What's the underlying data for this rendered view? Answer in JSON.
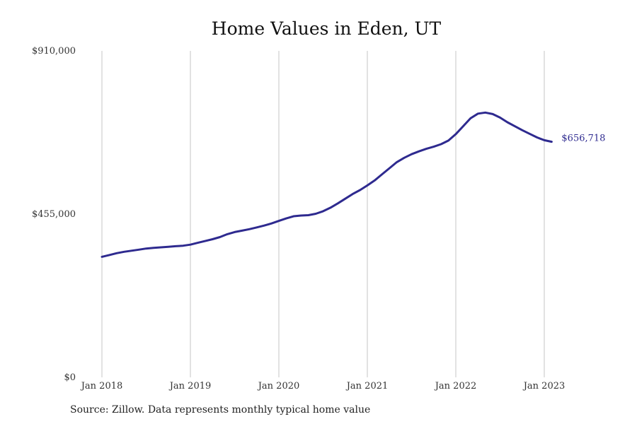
{
  "chart_data": {
    "type": "line",
    "title": "Home Values in Eden, UT",
    "xlabel": "",
    "ylabel": "",
    "ylim": [
      0,
      910000
    ],
    "y_ticks": [
      {
        "value": 0,
        "label": "$0"
      },
      {
        "value": 455000,
        "label": "$455,000"
      },
      {
        "value": 910000,
        "label": "$910,000"
      }
    ],
    "x_ticks": [
      "Jan 2018",
      "Jan 2019",
      "Jan 2020",
      "Jan 2021",
      "Jan 2022",
      "Jan 2023"
    ],
    "grid": "vertical",
    "line_color": "#2e2a8f",
    "end_label": "$656,718",
    "series": [
      {
        "x": [
          "2018-01",
          "2018-02",
          "2018-03",
          "2018-04",
          "2018-05",
          "2018-06",
          "2018-07",
          "2018-08",
          "2018-09",
          "2018-10",
          "2018-11",
          "2018-12",
          "2019-01",
          "2019-02",
          "2019-03",
          "2019-04",
          "2019-05",
          "2019-06",
          "2019-07",
          "2019-08",
          "2019-09",
          "2019-10",
          "2019-11",
          "2019-12",
          "2020-01",
          "2020-02",
          "2020-03",
          "2020-04",
          "2020-05",
          "2020-06",
          "2020-07",
          "2020-08",
          "2020-09",
          "2020-10",
          "2020-11",
          "2020-12",
          "2021-01",
          "2021-02",
          "2021-03",
          "2021-04",
          "2021-05",
          "2021-06",
          "2021-07",
          "2021-08",
          "2021-09",
          "2021-10",
          "2021-11",
          "2021-12",
          "2022-01",
          "2022-02",
          "2022-03",
          "2022-04",
          "2022-05",
          "2022-06",
          "2022-07",
          "2022-08",
          "2022-09",
          "2022-10",
          "2022-11",
          "2022-12",
          "2023-01",
          "2023-02"
        ],
        "values": [
          336000,
          341000,
          346000,
          350000,
          353000,
          356000,
          359000,
          361000,
          362500,
          364000,
          365500,
          367000,
          370000,
          375000,
          380000,
          385000,
          391000,
          399000,
          405000,
          409000,
          413000,
          418000,
          423000,
          429000,
          436000,
          443000,
          449000,
          451000,
          452000,
          456000,
          463000,
          473000,
          485000,
          498000,
          511000,
          522000,
          535000,
          549000,
          566000,
          583000,
          600000,
          612000,
          622000,
          630000,
          637000,
          643000,
          650000,
          660000,
          678000,
          700000,
          722000,
          735000,
          738000,
          734000,
          724000,
          711000,
          700000,
          689000,
          679000,
          669000,
          661000,
          656718
        ]
      }
    ]
  },
  "source_note": "Source: Zillow. Data represents monthly typical home value"
}
